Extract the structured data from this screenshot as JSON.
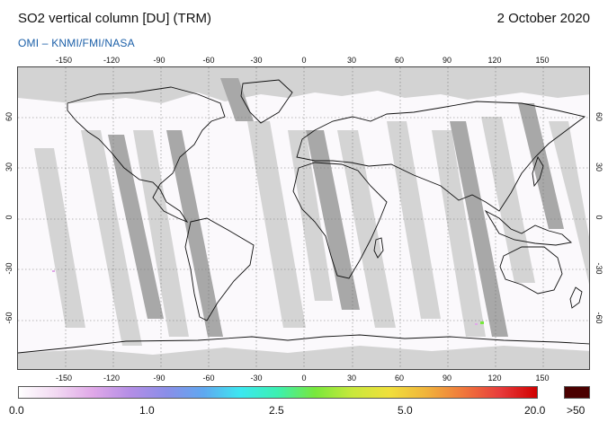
{
  "header": {
    "title": "SO2 vertical column [DU] (TRM)",
    "date": "2 October 2020",
    "credit": "OMI  –  KNMI/FMI/NASA"
  },
  "map": {
    "projection": "equirectangular",
    "lon_range": [
      -180,
      180
    ],
    "lat_range": [
      -90,
      90
    ],
    "lon_ticks": [
      -150,
      -120,
      -90,
      -60,
      -30,
      0,
      30,
      60,
      90,
      120,
      150
    ],
    "lat_ticks": [
      60,
      30,
      0,
      -30,
      -60
    ],
    "lon_tick_labels": [
      "-150",
      "-120",
      "-90",
      "-60",
      "-30",
      "0",
      "30",
      "60",
      "90",
      "120",
      "150"
    ],
    "lat_tick_labels": [
      "60",
      "30",
      "0",
      "-30",
      "-60"
    ],
    "gridlines": "dotted",
    "no_data_color": "#d3d3d3",
    "background_color": "#fbf9fc"
  },
  "colorbar": {
    "label_min": "0.0",
    "label_1": "1.0",
    "label_2": "2.5",
    "label_3": "5.0",
    "label_max": "20.0",
    "label_over": ">50",
    "colors": [
      "#ffffff",
      "#f2d9f2",
      "#e0a8e8",
      "#b48ee6",
      "#8a8ee8",
      "#5fa8f0",
      "#3ce8f0",
      "#3cf0b0",
      "#78e83c",
      "#c8e83c",
      "#f0e03c",
      "#f0b43c",
      "#f0783c",
      "#e83c3c",
      "#d00000"
    ],
    "over_color": "#4a0000"
  }
}
